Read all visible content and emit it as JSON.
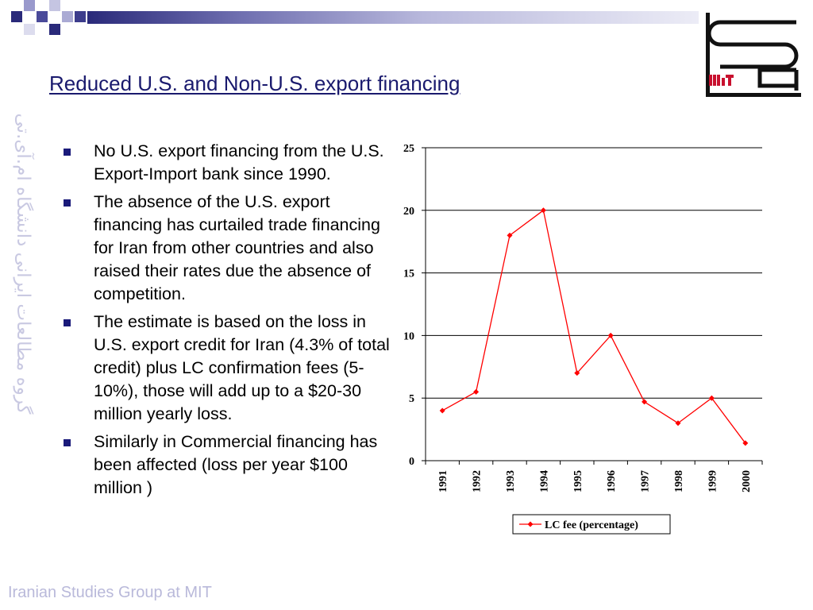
{
  "slide": {
    "title": "Reduced U.S. and Non-U.S. export financing",
    "side_text": "گروه مطالعات ایرانی دانشگاه ام.آی.تی",
    "footer": "Iranian Studies Group at MIT",
    "logo": {
      "letters": "isg",
      "sub": "MIT"
    },
    "bullets": [
      "No U.S. export financing from the U.S. Export-Import bank since 1990.",
      "The absence of the U.S. export financing has curtailed trade financing for Iran from other countries and also raised their rates due the absence of competition.",
      "The estimate is based on the loss in U.S. export credit for Iran (4.3% of total credit) plus LC confirmation fees (5-10%), those will add up to a  $20-30 million yearly loss.",
      "Similarly in Commercial financing has been affected (loss per year $100 million )"
    ]
  },
  "colors": {
    "title": "#1a1a6e",
    "bullet": "#1a1a7a",
    "series": "#ff0000",
    "footer": "#b9b9da",
    "side_text": "#c9c9e2",
    "logo_red": "#c8102e"
  },
  "chart_data": {
    "type": "line",
    "x": [
      "1991",
      "1992",
      "1993",
      "1994",
      "1995",
      "1996",
      "1997",
      "1998",
      "1999",
      "2000"
    ],
    "series": [
      {
        "name": "LC fee (percentage)",
        "values": [
          4,
          5.5,
          18,
          20,
          7,
          10,
          4.7,
          3,
          5,
          1.4
        ]
      }
    ],
    "yticks": [
      "0",
      "5",
      "10",
      "15",
      "20",
      "25"
    ],
    "ylim": [
      0,
      25
    ],
    "grid": true,
    "legend": "bottom-center",
    "title": "",
    "xlabel": "",
    "ylabel": ""
  }
}
